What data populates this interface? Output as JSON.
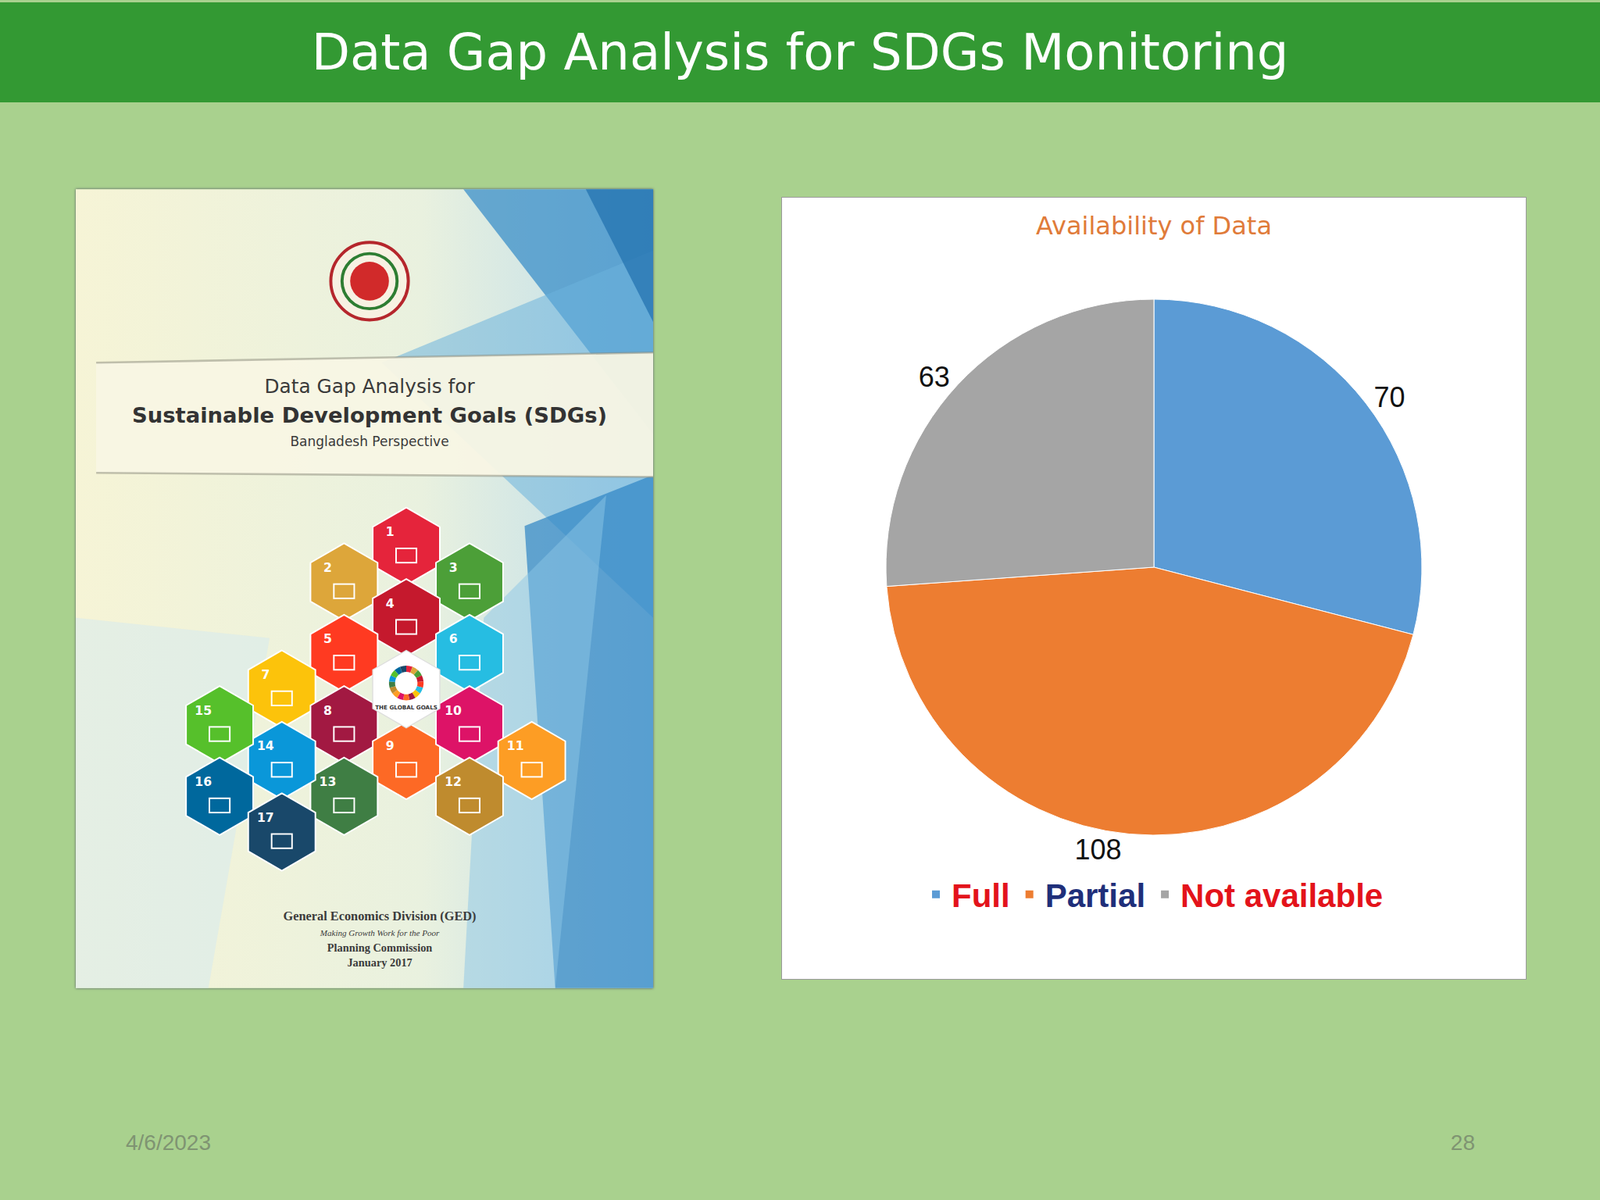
{
  "slide": {
    "title": "Data Gap Analysis for SDGs Monitoring",
    "date": "4/6/2023",
    "page_number": 28
  },
  "book_cover": {
    "title_lines": [
      "Data Gap Analysis for",
      "Sustainable Development Goals (SDGs)",
      "Bangladesh Perspective"
    ],
    "goal_numbers": [
      1,
      2,
      3,
      4,
      5,
      6,
      7,
      8,
      9,
      10,
      11,
      12,
      13,
      14,
      15,
      16,
      17
    ],
    "center_label": "THE GLOBAL GOALS",
    "publisher_lines": [
      "General Economics Division (GED)",
      "Making Growth Work for the Poor",
      "Planning Commission",
      "January 2017"
    ]
  },
  "chart_data": {
    "type": "pie",
    "title": "Availability of Data",
    "categories": [
      "Full",
      "Partial",
      "Not available"
    ],
    "values": [
      70,
      108,
      63
    ],
    "colors": [
      "#5b9bd5",
      "#ed7d31",
      "#a5a5a5"
    ],
    "data_labels": true,
    "legend": "bottom"
  }
}
